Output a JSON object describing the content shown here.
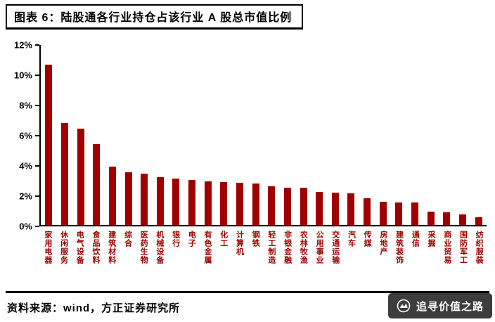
{
  "title": "图表 6：陆股通各行业持仓占该行业 A 股总市值比例",
  "source": "资料来源：wind，方正证券研究所",
  "watermark": "追寻价值之路",
  "colors": {
    "bar": "#A00000",
    "category_label": "#A00000",
    "axis": "#000000",
    "badge_bg": "#3D3D3D",
    "badge_text": "#FFFFFF"
  },
  "chart_data": {
    "type": "bar",
    "title": "陆股通各行业持仓占该行业A股总市值比例",
    "categories": [
      "家用电器",
      "休闲服务",
      "电气设备",
      "食品饮料",
      "建筑材料",
      "综合",
      "医药生物",
      "机械设备",
      "银行",
      "电子",
      "有色金属",
      "化工",
      "计算机",
      "钢铁",
      "轻工制造",
      "非银金融",
      "农林牧渔",
      "公用事业",
      "交通运输",
      "汽车",
      "传媒",
      "房地产",
      "建筑装饰",
      "通信",
      "采掘",
      "商业贸易",
      "国防军工",
      "纺织服装"
    ],
    "values": [
      10.7,
      6.8,
      6.4,
      5.4,
      3.9,
      3.5,
      3.4,
      3.2,
      3.1,
      3.0,
      2.9,
      2.85,
      2.8,
      2.75,
      2.6,
      2.5,
      2.5,
      2.2,
      2.15,
      2.1,
      1.8,
      1.55,
      1.5,
      1.5,
      0.9,
      0.85,
      0.7,
      0.5
    ],
    "xlabel": "",
    "ylabel": "",
    "ylim": [
      0,
      12
    ],
    "yticks": [
      "0%",
      "2%",
      "4%",
      "6%",
      "8%",
      "10%",
      "12%"
    ],
    "grid": false,
    "legend": false
  }
}
